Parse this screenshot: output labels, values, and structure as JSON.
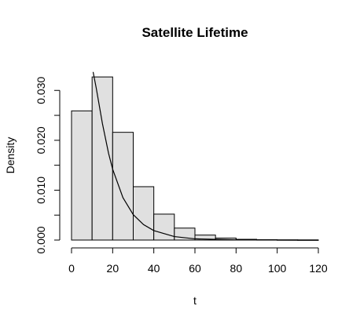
{
  "chart_data": {
    "type": "bar",
    "title": "Satellite Lifetime",
    "xlabel": "t",
    "ylabel": "Density",
    "bins": [
      {
        "start": 0,
        "end": 10,
        "density": 0.0259
      },
      {
        "start": 10,
        "end": 20,
        "density": 0.0327
      },
      {
        "start": 20,
        "end": 30,
        "density": 0.0216
      },
      {
        "start": 30,
        "end": 40,
        "density": 0.0107
      },
      {
        "start": 40,
        "end": 50,
        "density": 0.0052
      },
      {
        "start": 50,
        "end": 60,
        "density": 0.0024
      },
      {
        "start": 60,
        "end": 70,
        "density": 0.001
      },
      {
        "start": 70,
        "end": 80,
        "density": 0.0004
      },
      {
        "start": 80,
        "end": 90,
        "density": 0.00015
      },
      {
        "start": 90,
        "end": 100,
        "density": 7e-05
      },
      {
        "start": 100,
        "end": 110,
        "density": 4e-05
      },
      {
        "start": 110,
        "end": 120,
        "density": 2e-05
      }
    ],
    "curve": {
      "type": "line",
      "x_start": 10.5,
      "x_end": 120,
      "values": [
        {
          "x": 10.5,
          "y": 0.0337
        },
        {
          "x": 12,
          "y": 0.0305
        },
        {
          "x": 15,
          "y": 0.0234
        },
        {
          "x": 18,
          "y": 0.0174
        },
        {
          "x": 20,
          "y": 0.0142
        },
        {
          "x": 25,
          "y": 0.0085
        },
        {
          "x": 30,
          "y": 0.0051
        },
        {
          "x": 35,
          "y": 0.0031
        },
        {
          "x": 40,
          "y": 0.0019
        },
        {
          "x": 50,
          "y": 0.0007
        },
        {
          "x": 60,
          "y": 0.00025
        },
        {
          "x": 80,
          "y": 4e-05
        },
        {
          "x": 100,
          "y": 1e-05
        },
        {
          "x": 120,
          "y": 0.0
        }
      ]
    },
    "x_ticks": [
      "0",
      "20",
      "40",
      "60",
      "80",
      "100",
      "120"
    ],
    "x_tick_values": [
      0,
      20,
      40,
      60,
      80,
      100,
      120
    ],
    "y_ticks": [
      "0.000",
      "0.010",
      "0.020",
      "0.030"
    ],
    "y_tick_values": [
      0,
      0.01,
      0.02,
      0.03
    ],
    "y_minor_tick_values": [
      0.005,
      0.015,
      0.025
    ],
    "xlim": [
      0,
      120
    ],
    "ylim": [
      0,
      0.0335
    ],
    "grid": false,
    "colors": {
      "bar_fill": "#e0e0e0",
      "stroke": "#000000"
    }
  }
}
